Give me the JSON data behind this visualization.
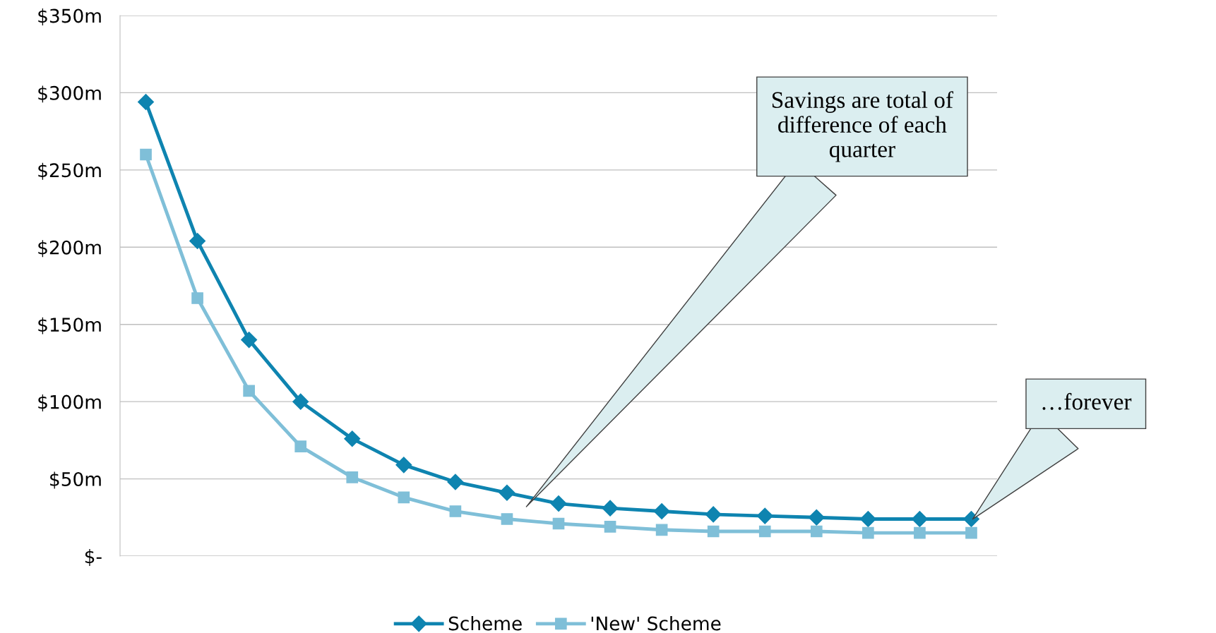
{
  "chart_data": {
    "type": "line",
    "categories": [
      null,
      null,
      null,
      null,
      null,
      null,
      null,
      null,
      null,
      null,
      null,
      null,
      null,
      null,
      null,
      null,
      null
    ],
    "series": [
      {
        "name": "Scheme",
        "color": "#0e84b0",
        "marker": "diamond",
        "values": [
          294,
          204,
          140,
          100,
          76,
          59,
          48,
          41,
          34,
          31,
          29,
          27,
          26,
          25,
          24,
          24,
          24
        ]
      },
      {
        "name": "'New' Scheme",
        "color": "#7fbfd8",
        "marker": "square",
        "values": [
          260,
          167,
          107,
          71,
          51,
          38,
          29,
          24,
          21,
          19,
          17,
          16,
          16,
          16,
          15,
          15,
          15
        ]
      }
    ],
    "ylim": [
      0,
      350
    ],
    "yticks": [
      {
        "value": 0,
        "label": "$-"
      },
      {
        "value": 50,
        "label": "$50m"
      },
      {
        "value": 100,
        "label": "$100m"
      },
      {
        "value": 150,
        "label": "$150m"
      },
      {
        "value": 200,
        "label": "$200m"
      },
      {
        "value": 250,
        "label": "$250m"
      },
      {
        "value": 300,
        "label": "$300m"
      },
      {
        "value": 350,
        "label": "$350m"
      }
    ],
    "grid": "y",
    "legend": "bottom",
    "tick_labels": "y",
    "annotations": [
      "Savings are total of difference of each quarter",
      "…forever"
    ]
  }
}
